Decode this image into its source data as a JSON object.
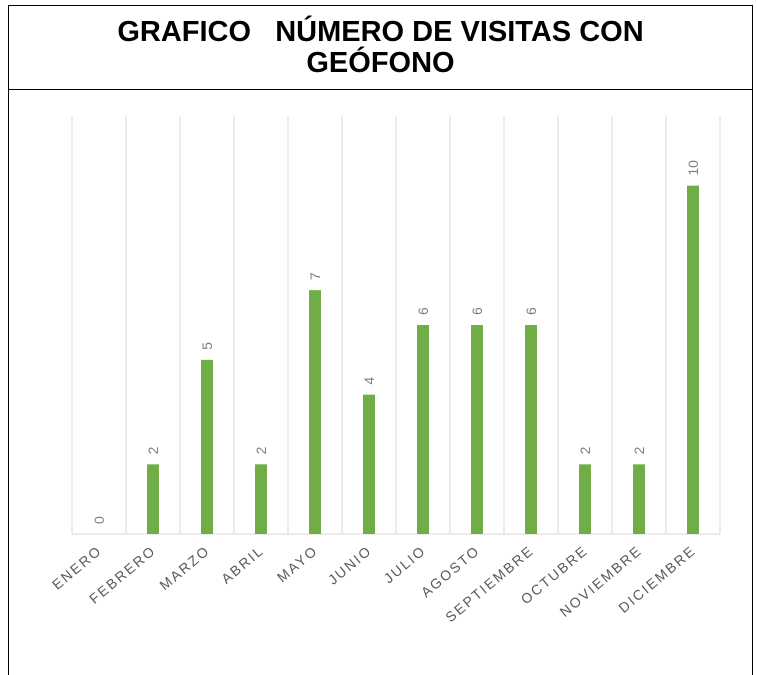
{
  "chart_data": {
    "type": "bar",
    "title": "GRAFICO   NÚMERO DE VISITAS CON GEÓFONO",
    "categories": [
      "ENERO",
      "FEBRERO",
      "MARZO",
      "ABRIL",
      "MAYO",
      "JUNIO",
      "JULIO",
      "AGOSTO",
      "SEPTIEMBRE",
      "OCTUBRE",
      "NOVIEMBRE",
      "DICIEMBRE"
    ],
    "values": [
      0,
      2,
      5,
      2,
      7,
      4,
      6,
      6,
      6,
      2,
      2,
      10
    ],
    "color": "#70ad47",
    "ylim": [
      0,
      12
    ],
    "data_labels": true
  }
}
